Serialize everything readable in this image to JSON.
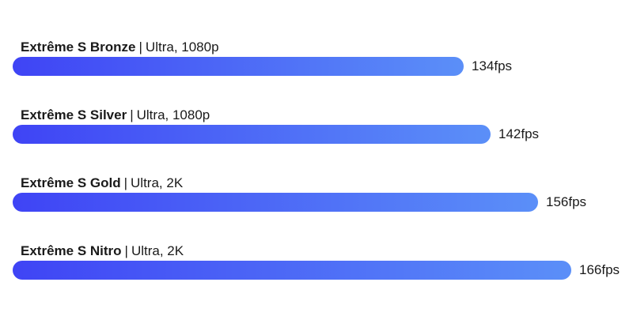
{
  "chart_data": {
    "type": "bar",
    "orientation": "horizontal",
    "title": "",
    "xlabel": "",
    "ylabel": "",
    "xlim": [
      0,
      190
    ],
    "grid": false,
    "bar_gradient": [
      "#3f44f5",
      "#5b8ff8"
    ],
    "categories": [
      {
        "name": "Extrême S Bronze",
        "settings": "Ultra, 1080p"
      },
      {
        "name": "Extrême S Silver",
        "settings": "Ultra, 1080p"
      },
      {
        "name": "Extrême S Gold",
        "settings": "Ultra, 2K"
      },
      {
        "name": "Extrême S Nitro",
        "settings": "Ultra, 2K"
      }
    ],
    "values": [
      134,
      142,
      156,
      166
    ],
    "value_labels": [
      "134fps",
      "142fps",
      "156fps",
      "166fps"
    ],
    "separator": "|"
  }
}
